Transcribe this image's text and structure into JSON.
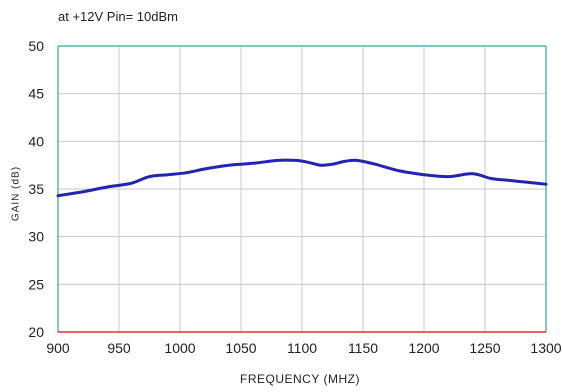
{
  "chart_data": {
    "type": "line",
    "title": "at +12V Pin= 10dBm",
    "xlabel": "FREQUENCY (MHZ)",
    "ylabel": "GAIN (dB)",
    "xlim": [
      900,
      1300
    ],
    "ylim": [
      20,
      50
    ],
    "xticks": [
      900,
      950,
      1000,
      1050,
      1100,
      1150,
      1200,
      1250,
      1300
    ],
    "yticks": [
      20,
      25,
      30,
      35,
      40,
      45,
      50
    ],
    "grid": true,
    "legend": "none",
    "series": [
      {
        "color": "#2323b4",
        "x": [
          900,
          920,
          940,
          960,
          975,
          990,
          1005,
          1020,
          1040,
          1060,
          1080,
          1095,
          1105,
          1115,
          1125,
          1135,
          1145,
          1160,
          1180,
          1200,
          1220,
          1240,
          1255,
          1270,
          1285,
          1300
        ],
        "y": [
          34.3,
          34.7,
          35.2,
          35.6,
          36.3,
          36.5,
          36.7,
          37.1,
          37.5,
          37.7,
          38.0,
          38.0,
          37.8,
          37.5,
          37.6,
          37.9,
          38.0,
          37.6,
          36.9,
          36.5,
          36.3,
          36.6,
          36.1,
          35.9,
          35.7,
          35.5
        ]
      }
    ],
    "colors": {
      "top_axis": "#2aa6a6",
      "bottom_axis": "#e03030",
      "side_axis": "#2aa6a6",
      "grid": "#c8c8c8"
    }
  }
}
